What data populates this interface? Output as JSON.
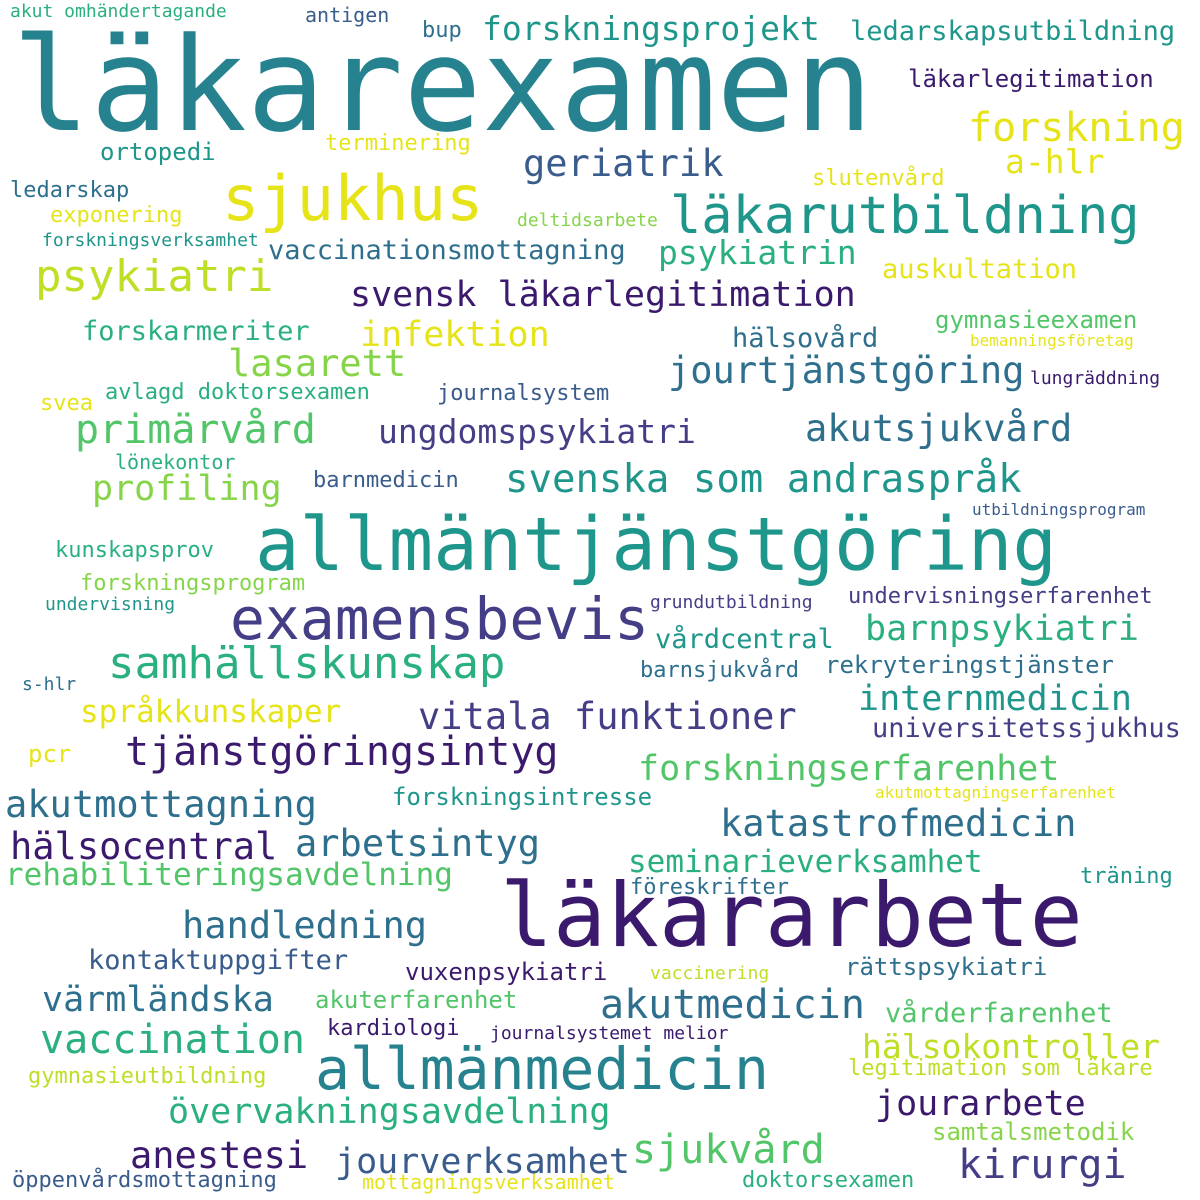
{
  "palette": {
    "c1": "#3b1a6e",
    "c2": "#433e85",
    "c3": "#3a5c8c",
    "c4": "#2e6f8e",
    "c5": "#26828e",
    "c6": "#1f968b",
    "c7": "#2ab07f",
    "c8": "#52c569",
    "c9": "#86d549",
    "c10": "#bddf26",
    "c11": "#e6e419"
  },
  "words": [
    {
      "id": "lakarexamen",
      "text": "läkarexamen",
      "color": "#26828e"
    },
    {
      "id": "allmantjanstgoring",
      "text": "allmäntjänstgöring",
      "color": "#1f968b"
    },
    {
      "id": "lakararbete",
      "text": "läkararbete",
      "color": "#3b1a6e"
    },
    {
      "id": "sjukhus",
      "text": "sjukhus",
      "color": "#e6e419"
    },
    {
      "id": "lakarutbildning",
      "text": "läkarutbildning",
      "color": "#1f968b"
    },
    {
      "id": "examensbevis",
      "text": "examensbevis",
      "color": "#433e85"
    },
    {
      "id": "allmanmedicin",
      "text": "allmänmedicin",
      "color": "#26828e"
    },
    {
      "id": "samhallskunskap",
      "text": "samhällskunskap",
      "color": "#2ab07f"
    },
    {
      "id": "tjanstgoringsintyg",
      "text": "tjänstgöringsintyg",
      "color": "#3b1a6e"
    },
    {
      "id": "forskningsprojekt",
      "text": "forskningsprojekt",
      "color": "#1f968b"
    },
    {
      "id": "forskning",
      "text": "forskning",
      "color": "#e6e419"
    },
    {
      "id": "psykiatri",
      "text": "psykiatri",
      "color": "#bddf26"
    },
    {
      "id": "geriatrik",
      "text": "geriatrik",
      "color": "#3a5c8c"
    },
    {
      "id": "svensk-lakarlegitimation",
      "text": "svensk läkarlegitimation",
      "color": "#3b1a6e"
    },
    {
      "id": "primarvard",
      "text": "primärvård",
      "color": "#52c569"
    },
    {
      "id": "akutsjukvard",
      "text": "akutsjukvård",
      "color": "#2e6f8e"
    },
    {
      "id": "svenska-som-andrasprak",
      "text": "svenska som andraspråk",
      "color": "#1f968b"
    },
    {
      "id": "jourtjanstgoring",
      "text": "jourtjänstgöring",
      "color": "#2e6f8e"
    },
    {
      "id": "ungdomspsykiatri",
      "text": "ungdomspsykiatri",
      "color": "#433e85"
    },
    {
      "id": "vitala-funktioner",
      "text": "vitala funktioner",
      "color": "#433e85"
    },
    {
      "id": "akutmedicin",
      "text": "akutmedicin",
      "color": "#2e6f8e"
    },
    {
      "id": "vaccination",
      "text": "vaccination",
      "color": "#2ab07f"
    },
    {
      "id": "katastrofmedicin",
      "text": "katastrofmedicin",
      "color": "#2e6f8e"
    },
    {
      "id": "forskningserfarenhet",
      "text": "forskningserfarenhet",
      "color": "#52c569"
    },
    {
      "id": "barnpsykiatri",
      "text": "barnpsykiatri",
      "color": "#2ab07f"
    },
    {
      "id": "internmedicin",
      "text": "internmedicin",
      "color": "#1f968b"
    },
    {
      "id": "kirurgi",
      "text": "kirurgi",
      "color": "#433e85"
    },
    {
      "id": "sjukvard",
      "text": "sjukvård",
      "color": "#52c569"
    },
    {
      "id": "jourarbete",
      "text": "jourarbete",
      "color": "#3b1a6e"
    },
    {
      "id": "anestesi",
      "text": "anestesi",
      "color": "#3b1a6e"
    },
    {
      "id": "jourverksamhet",
      "text": "jourverksamhet",
      "color": "#3a5c8c"
    },
    {
      "id": "overvakningsavdelning",
      "text": "övervakningsavdelning",
      "color": "#2ab07f"
    },
    {
      "id": "handledning",
      "text": "handledning",
      "color": "#2e6f8e"
    },
    {
      "id": "akutmottagning",
      "text": "akutmottagning",
      "color": "#2e6f8e"
    },
    {
      "id": "halsocentral",
      "text": "hälsocentral",
      "color": "#3b1a6e"
    },
    {
      "id": "arbetsintyg",
      "text": "arbetsintyg",
      "color": "#2e6f8e"
    },
    {
      "id": "varmlandska",
      "text": "värmländska",
      "color": "#2e6f8e"
    },
    {
      "id": "lasarett",
      "text": "lasarett",
      "color": "#86d549"
    },
    {
      "id": "infektion",
      "text": "infektion",
      "color": "#e6e419"
    },
    {
      "id": "profiling",
      "text": "profiling",
      "color": "#86d549"
    },
    {
      "id": "psykiatrin",
      "text": "psykiatrin",
      "color": "#2ab07f"
    },
    {
      "id": "halsokontroller",
      "text": "hälsokontroller",
      "color": "#bddf26"
    },
    {
      "id": "a-hlr",
      "text": "a-hlr",
      "color": "#e6e419"
    },
    {
      "id": "rehabiliteringsavdelning",
      "text": "rehabiliteringsavdelning",
      "color": "#52c569"
    },
    {
      "id": "seminarieverksamhet",
      "text": "seminarieverksamhet",
      "color": "#2ab07f"
    },
    {
      "id": "sprakkunskaper",
      "text": "språkkunskaper",
      "color": "#e6e419"
    },
    {
      "id": "ledarskapsutbildning",
      "text": "ledarskapsutbildning",
      "color": "#1f968b"
    },
    {
      "id": "vaccinationsmottagning",
      "text": "vaccinationsmottagning",
      "color": "#2e6f8e"
    },
    {
      "id": "auskultation",
      "text": "auskultation",
      "color": "#e6e419"
    },
    {
      "id": "halsovard",
      "text": "hälsovård",
      "color": "#2e6f8e"
    },
    {
      "id": "vardcentral",
      "text": "vårdcentral",
      "color": "#1f968b"
    },
    {
      "id": "forskarmeriter",
      "text": "forskarmeriter",
      "color": "#2ab07f"
    },
    {
      "id": "avlagd-doktorsexamen",
      "text": "avlagd doktorsexamen",
      "color": "#2ab07f"
    },
    {
      "id": "forskningsintresse",
      "text": "forskningsintresse",
      "color": "#1f968b"
    },
    {
      "id": "undervisningserfarenhet",
      "text": "undervisningserfarenhet",
      "color": "#433e85"
    },
    {
      "id": "universitetssjukhus",
      "text": "universitetssjukhus",
      "color": "#433e85"
    },
    {
      "id": "rekryteringstjanster",
      "text": "rekryteringstjänster",
      "color": "#2e6f8e"
    },
    {
      "id": "vuxenpsykiatri",
      "text": "vuxenpsykiatri",
      "color": "#3b1a6e"
    },
    {
      "id": "rattspsykiatri",
      "text": "rättspsykiatri",
      "color": "#2e6f8e"
    },
    {
      "id": "varderfarenhet",
      "text": "vårderfarenhet",
      "color": "#52c569"
    },
    {
      "id": "akuterfarenhet",
      "text": "akuterfarenhet",
      "color": "#52c569"
    },
    {
      "id": "kontaktuppgifter",
      "text": "kontaktuppgifter",
      "color": "#3a5c8c"
    },
    {
      "id": "legitimation-som-lakare",
      "text": "legitimation som läkare",
      "color": "#bddf26"
    },
    {
      "id": "samtalsmetodik",
      "text": "samtalsmetodik",
      "color": "#86d549"
    },
    {
      "id": "gymnasieexamen",
      "text": "gymnasieexamen",
      "color": "#52c569"
    },
    {
      "id": "lakarlegitimation",
      "text": "läkarlegitimation",
      "color": "#3b1a6e"
    },
    {
      "id": "terminering",
      "text": "terminering",
      "color": "#e6e419"
    },
    {
      "id": "slutenvard",
      "text": "slutenvård",
      "color": "#e6e419"
    },
    {
      "id": "ortopedi",
      "text": "ortopedi",
      "color": "#1f968b"
    },
    {
      "id": "ledarskap",
      "text": "ledarskap",
      "color": "#2e6f8e"
    },
    {
      "id": "exponering",
      "text": "exponering",
      "color": "#e6e419"
    },
    {
      "id": "deltidsarbete",
      "text": "deltidsarbete",
      "color": "#86d549"
    },
    {
      "id": "forskningsverksamhet",
      "text": "forskningsverksamhet",
      "color": "#1f968b"
    },
    {
      "id": "bemanningsforetag",
      "text": "bemanningsföretag",
      "color": "#e6e419"
    },
    {
      "id": "lungraddning",
      "text": "lungräddning",
      "color": "#3b1a6e"
    },
    {
      "id": "journalsystem",
      "text": "journalsystem",
      "color": "#3a5c8c"
    },
    {
      "id": "svea",
      "text": "svea",
      "color": "#e6e419"
    },
    {
      "id": "lonekontor",
      "text": "lönekontor",
      "color": "#2ab07f"
    },
    {
      "id": "barnmedicin",
      "text": "barnmedicin",
      "color": "#3a5c8c"
    },
    {
      "id": "utbildningsprogram",
      "text": "utbildningsprogram",
      "color": "#3a5c8c"
    },
    {
      "id": "kunskapsprov",
      "text": "kunskapsprov",
      "color": "#2ab07f"
    },
    {
      "id": "forskningsprogram",
      "text": "forskningsprogram",
      "color": "#86d549"
    },
    {
      "id": "undervisning",
      "text": "undervisning",
      "color": "#1f968b"
    },
    {
      "id": "grundutbildning",
      "text": "grundutbildning",
      "color": "#433e85"
    },
    {
      "id": "s-hlr",
      "text": "s-hlr",
      "color": "#2e6f8e"
    },
    {
      "id": "barnsjukvard",
      "text": "barnsjukvård",
      "color": "#2e6f8e"
    },
    {
      "id": "pcr",
      "text": "pcr",
      "color": "#e6e419"
    },
    {
      "id": "akutmottagningserfarenhet",
      "text": "akutmottagningserfarenhet",
      "color": "#e6e419"
    },
    {
      "id": "traning",
      "text": "träning",
      "color": "#1f968b"
    },
    {
      "id": "foreskrifter",
      "text": "föreskrifter",
      "color": "#2e6f8e"
    },
    {
      "id": "vaccinering",
      "text": "vaccinering",
      "color": "#bddf26"
    },
    {
      "id": "kardiologi",
      "text": "kardiologi",
      "color": "#3b1a6e"
    },
    {
      "id": "journalsystemet-melior",
      "text": "journalsystemet melior",
      "color": "#3b1a6e"
    },
    {
      "id": "gymnasieutbildning",
      "text": "gymnasieutbildning",
      "color": "#bddf26"
    },
    {
      "id": "oppenvardsmottagning",
      "text": "öppenvårdsmottagning",
      "color": "#3a5c8c"
    },
    {
      "id": "mottagningsverksamhet",
      "text": "mottagningsverksamhet",
      "color": "#e6e419"
    },
    {
      "id": "doktorsexamen",
      "text": "doktorsexamen",
      "color": "#2ab07f"
    },
    {
      "id": "akut-omhandertagande",
      "text": "akut omhändertagande",
      "color": "#2ab07f"
    },
    {
      "id": "antigen",
      "text": "antigen",
      "color": "#3a5c8c"
    },
    {
      "id": "bup",
      "text": "bup",
      "color": "#2e6f8e"
    }
  ]
}
